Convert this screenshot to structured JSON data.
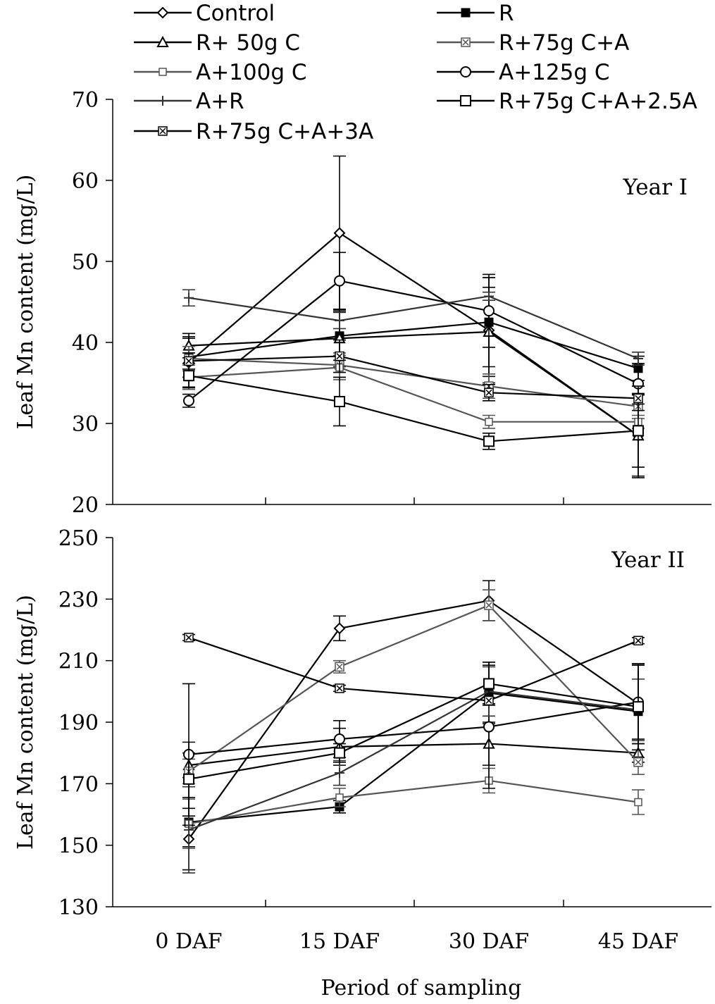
{
  "chart_data": {
    "type": "line",
    "xlabel": "Period of sampling",
    "categories": [
      "0 DAF",
      "15 DAF",
      "30 DAF",
      "45 DAF"
    ],
    "legend": [
      {
        "name": "Control",
        "marker": "diamond-open",
        "color": "#000000"
      },
      {
        "name": "R",
        "marker": "square-filled",
        "color": "#000000"
      },
      {
        "name": "R+ 50g C",
        "marker": "triangle-open",
        "color": "#000000"
      },
      {
        "name": "R+75g C+A",
        "marker": "cross-box",
        "color": "#555555"
      },
      {
        "name": "A+100g C",
        "marker": "square-small",
        "color": "#555555"
      },
      {
        "name": "A+125g C",
        "marker": "circle-open",
        "color": "#000000"
      },
      {
        "name": "A+R",
        "marker": "plus",
        "color": "#333333"
      },
      {
        "name": "R+75g C+A+2.5A",
        "marker": "square-open",
        "color": "#000000"
      },
      {
        "name": "R+75g C+A+3A",
        "marker": "cross-box",
        "color": "#000000"
      }
    ],
    "panels": [
      {
        "label": "Year I",
        "ylabel": "Leaf Mn content (mg/L)",
        "ylim": [
          20,
          70
        ],
        "yticks": [
          20,
          30,
          40,
          50,
          60,
          70
        ],
        "series": [
          {
            "name": "Control",
            "values": [
              37.5,
              53.5,
              41.5,
              28.5
            ],
            "err": [
              3,
              9.5,
              6.5,
              5
            ]
          },
          {
            "name": "R",
            "values": [
              38.2,
              40.8,
              42.5,
              36.8
            ],
            "err": [
              2.5,
              3,
              5.5,
              1.5
            ]
          },
          {
            "name": "R+ 50g C",
            "values": [
              39.6,
              40.5,
              41.3,
              28.5
            ],
            "err": [
              1.5,
              3.5,
              5.5,
              5.2
            ]
          },
          {
            "name": "R+75g C+A",
            "values": [
              38,
              37.2,
              34.6,
              32.1
            ],
            "err": [
              1.5,
              1.5,
              1.5,
              1.5
            ]
          },
          {
            "name": "A+100g C",
            "values": [
              35.7,
              36.9,
              30.2,
              30.2
            ],
            "err": [
              1.5,
              1.5,
              0.8,
              0.8
            ]
          },
          {
            "name": "A+125g C",
            "values": [
              32.8,
              47.6,
              43.9,
              34.9
            ],
            "err": [
              0.8,
              3.5,
              4.5,
              2.5
            ]
          },
          {
            "name": "A+R",
            "values": [
              45.5,
              42.7,
              45.7,
              38
            ],
            "err": [
              1,
              1,
              0.5,
              0.8
            ]
          },
          {
            "name": "R+75g C+A+2.5A",
            "values": [
              35.9,
              32.7,
              27.8,
              29.1
            ],
            "err": [
              1.5,
              3,
              1,
              4.5
            ]
          },
          {
            "name": "R+75g C+A+3A",
            "values": [
              37.7,
              38.3,
              33.8,
              33.1
            ],
            "err": [
              1,
              2,
              1,
              1.5
            ]
          }
        ]
      },
      {
        "label": "Year II",
        "ylabel": "Leaf Mn content (mg/L)",
        "ylim": [
          130,
          250
        ],
        "yticks": [
          130,
          150,
          170,
          190,
          210,
          230,
          250
        ],
        "series": [
          {
            "name": "Control",
            "values": [
              152,
              220.5,
              229.5,
              196
            ],
            "err": [
              10,
              4,
              6.5,
              13
            ]
          },
          {
            "name": "R",
            "values": [
              157.5,
              162.5,
              199.5,
              193.5
            ],
            "err": [
              8,
              2,
              10,
              15
            ]
          },
          {
            "name": "R+ 50g C",
            "values": [
              176,
              182,
              183,
              180
            ],
            "err": [
              4,
              6,
              7,
              3
            ]
          },
          {
            "name": "R+75g C+A",
            "values": [
              174,
              208,
              228,
              177
            ],
            "err": [
              4,
              2,
              5,
              4
            ]
          },
          {
            "name": "A+100g C",
            "values": [
              157,
              165.5,
              171,
              164
            ],
            "err": [
              8,
              3,
              4,
              4
            ]
          },
          {
            "name": "A+125g C",
            "values": [
              179.5,
              184.5,
              188.5,
              196.5
            ],
            "err": [
              23,
              6,
              20,
              12
            ]
          },
          {
            "name": "A+R",
            "values": [
              155,
              173.5,
              200,
              194
            ],
            "err": [
              14,
              4,
              8,
              10
            ]
          },
          {
            "name": "R+75g C+A+2.5A",
            "values": [
              171.5,
              180,
              202.5,
              195
            ],
            "err": [
              12,
              3,
              7,
              14
            ]
          },
          {
            "name": "R+75g C+A+3A",
            "values": [
              217.5,
              201,
              197,
              216.5
            ],
            "err": [
              1,
              1,
              1,
              1
            ]
          }
        ]
      }
    ]
  }
}
